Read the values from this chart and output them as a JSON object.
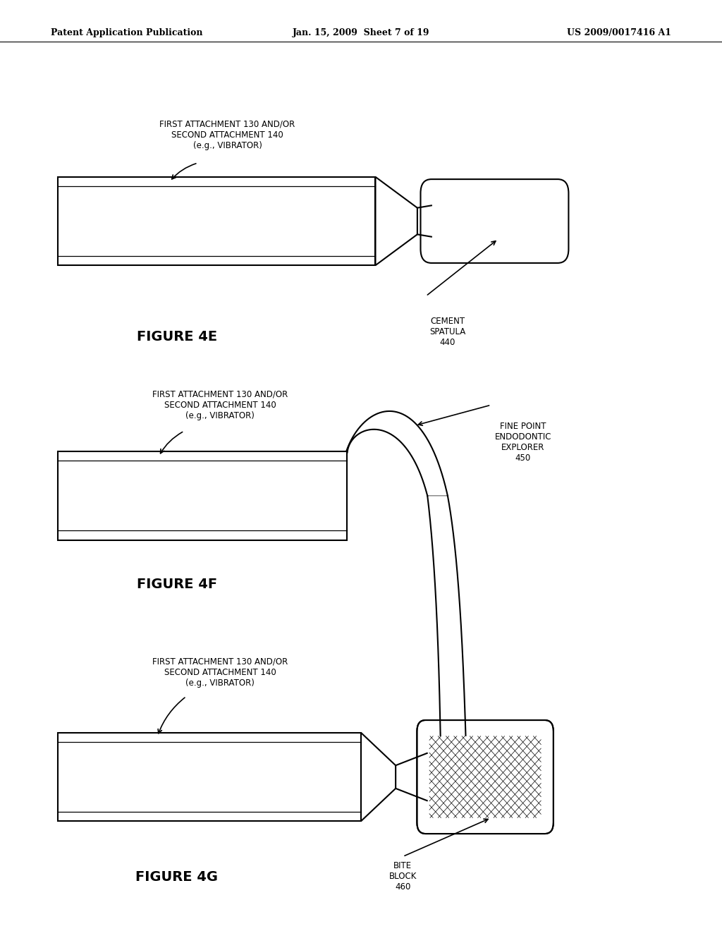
{
  "bg_color": "#ffffff",
  "header_left": "Patent Application Publication",
  "header_center": "Jan. 15, 2009  Sheet 7 of 19",
  "header_right": "US 2009/0017416 A1",
  "fig4e": {
    "label": "FIGURE 4E",
    "annot_vibrator": "FIRST ATTACHMENT 130 AND/OR\nSECOND ATTACHMENT 140\n(e.g., VIBRATOR)",
    "annot_cement": "CEMENT\nSPATULA\n440"
  },
  "fig4f": {
    "label": "FIGURE 4F",
    "annot_vibrator": "FIRST ATTACHMENT 130 AND/OR\nSECOND ATTACHMENT 140\n(e.g., VIBRATOR)",
    "annot_explorer": "FINE POINT\nENDODONTIC\nEXPLORER\n450"
  },
  "fig4g": {
    "label": "FIGURE 4G",
    "annot_vibrator": "FIRST ATTACHMENT 130 AND/OR\nSECOND ATTACHMENT 140\n(e.g., VIBRATOR)",
    "annot_bite": "BITE\nBLOCK\n460"
  }
}
